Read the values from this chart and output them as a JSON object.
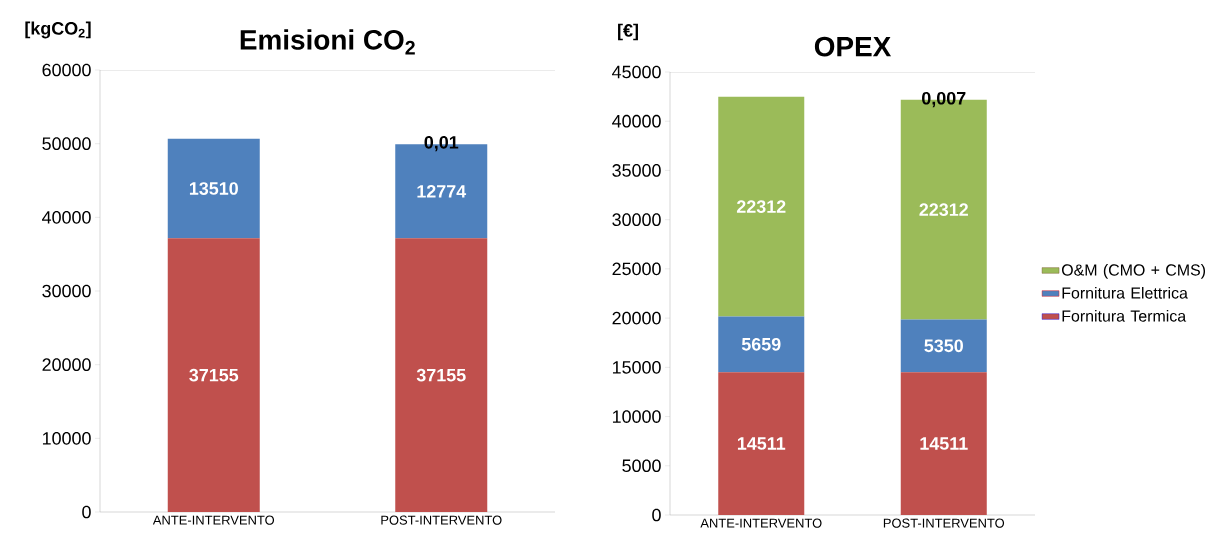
{
  "chart_data": [
    {
      "type": "bar",
      "title": "Emisioni CO$_{2}$",
      "ylabel": "[kgCO$_{2}$]",
      "categories": [
        "ANTE-INTERVENTO",
        "POST-INTERVENTO"
      ],
      "stacked": true,
      "data_labels": true,
      "ylim": [
        0,
        60000
      ],
      "yticks": [
        0,
        10000,
        20000,
        30000,
        40000,
        50000,
        60000
      ],
      "series": [
        {
          "color": "#c0504d",
          "values": [
            37155,
            37155
          ]
        },
        {
          "color": "#4f81bd",
          "values": [
            13510,
            12774
          ]
        }
      ],
      "annotations": [
        {
          "text": "0,01",
          "x": "POST-INTERVENTO",
          "y": 50000
        }
      ]
    },
    {
      "type": "bar",
      "title": "OPEX",
      "ylabel": "[€]",
      "categories": [
        "ANTE-INTERVENTO",
        "POST-INTERVENTO"
      ],
      "stacked": true,
      "data_labels": true,
      "ylim": [
        0,
        45000
      ],
      "yticks": [
        0,
        5000,
        10000,
        15000,
        20000,
        25000,
        30000,
        35000,
        40000,
        45000
      ],
      "legend": "right",
      "series": [
        {
          "name": "Fornitura Termica",
          "color": "#c0504d",
          "values": [
            14511,
            14511
          ]
        },
        {
          "name": "Fornitura Elettrica",
          "color": "#4f81bd",
          "values": [
            5659,
            5350
          ]
        },
        {
          "name": "O&M (CMO + CMS)",
          "color": "#9bbb59",
          "values": [
            22312,
            22312
          ]
        }
      ],
      "annotations": [
        {
          "text": "0,007",
          "x": "POST-INTERVENTO",
          "y": 42200
        }
      ]
    }
  ]
}
